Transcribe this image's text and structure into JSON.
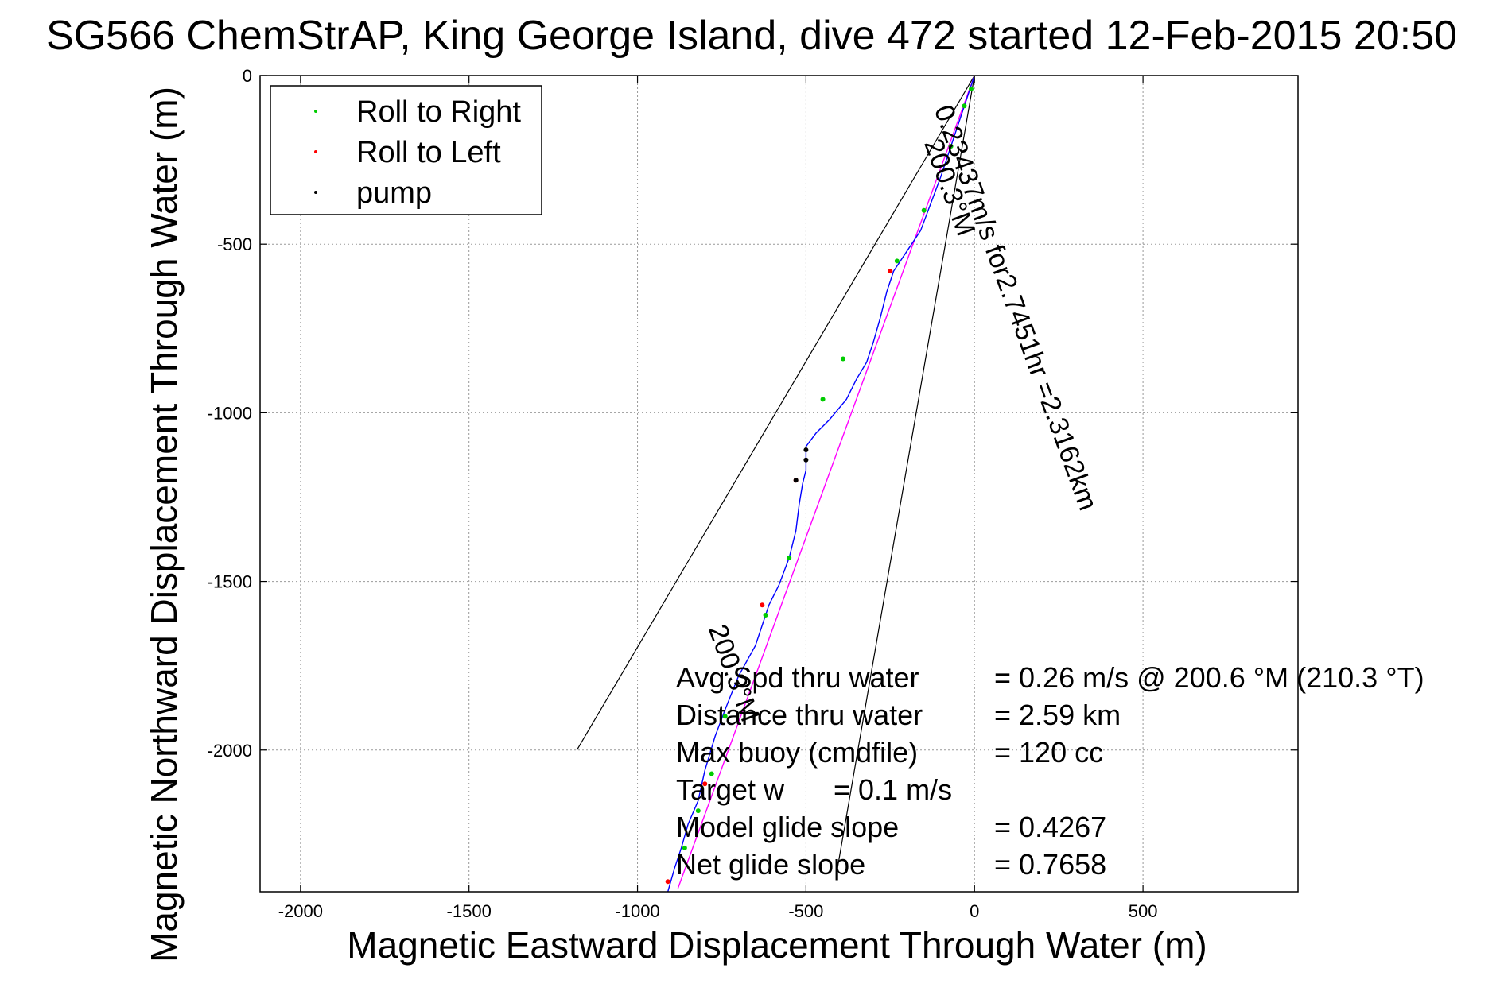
{
  "chart_data": {
    "type": "scatter",
    "title": "SG566 ChemStrAP, King George Island, dive 472 started 12-Feb-2015 20:50",
    "xlabel": "Magnetic Eastward Displacement Through Water (m)",
    "ylabel": "Magnetic Northward Displacement Through Water (m)",
    "xlim": [
      -2120,
      960
    ],
    "ylim": [
      -2420,
      0
    ],
    "xticks": [
      -2000,
      -1500,
      -1000,
      -500,
      0,
      500
    ],
    "xticklabels": [
      "-2000",
      "-1500",
      "-1000",
      "-500",
      "0",
      "500"
    ],
    "yticks": [
      0,
      -500,
      -1000,
      -1500,
      -2000
    ],
    "yticklabels": [
      "0",
      "-500",
      "-1000",
      "-1500",
      "-2000"
    ],
    "grid": true,
    "legend_position": "top-left",
    "legend": [
      {
        "label": "Roll to Right",
        "color": "#00cc00"
      },
      {
        "label": "Roll to Left",
        "color": "#ff0000"
      },
      {
        "label": "pump",
        "color": "#000000"
      }
    ],
    "track": {
      "color": "#0000ff",
      "x": [
        0,
        -20,
        -40,
        -60,
        -80,
        -100,
        -130,
        -160,
        -200,
        -240,
        -260,
        -280,
        -300,
        -320,
        -350,
        -380,
        -430,
        -470,
        -500,
        -500,
        -510,
        -520,
        -530,
        -550,
        -580,
        -610,
        -630,
        -650,
        -700,
        -740,
        -770,
        -800,
        -820,
        -850,
        -870,
        -890,
        -910
      ],
      "y": [
        0,
        -60,
        -120,
        -180,
        -240,
        -300,
        -380,
        -460,
        -520,
        -580,
        -640,
        -720,
        -790,
        -850,
        -900,
        -960,
        -1020,
        -1060,
        -1100,
        -1170,
        -1210,
        -1270,
        -1350,
        -1430,
        -1510,
        -1570,
        -1630,
        -1690,
        -1780,
        -1880,
        -1960,
        -2060,
        -2150,
        -2220,
        -2290,
        -2350,
        -2420
      ]
    },
    "roll_right_points": {
      "x": [
        -10,
        -30,
        -70,
        -150,
        -230,
        -390,
        -450,
        -550,
        -620,
        -740,
        -780,
        -820,
        -860
      ],
      "y": [
        -40,
        -90,
        -210,
        -400,
        -550,
        -840,
        -960,
        -1430,
        -1600,
        -1900,
        -2070,
        -2180,
        -2290
      ],
      "color": "#00cc00"
    },
    "roll_left_points": {
      "x": [
        -250,
        -530,
        -630,
        -800,
        -910
      ],
      "y": [
        -580,
        -1200,
        -1570,
        -2100,
        -2390
      ],
      "color": "#ff0000"
    },
    "pump_points": {
      "x": [
        -500,
        -500,
        -530
      ],
      "y": [
        -1110,
        -1140,
        -1200
      ],
      "color": "#000000"
    },
    "heading_line": {
      "x": [
        0,
        -880
      ],
      "y": [
        0,
        -2410
      ],
      "color": "#ff00ff"
    },
    "cone_lines": [
      {
        "x": [
          0,
          -1180
        ],
        "y": [
          0,
          -2000
        ],
        "color": "#000000"
      },
      {
        "x": [
          0,
          -410
        ],
        "y": [
          0,
          -2370
        ],
        "color": "#000000"
      }
    ],
    "annotations": [
      {
        "text": "0.23437m/s for2.7451hr =2.3162km",
        "x": -120,
        "y": -100,
        "rotate": 70
      },
      {
        "text": "200.3°M",
        "x": -150,
        "y": -200,
        "rotate": 70
      },
      {
        "text": "200.3°M",
        "x": -790,
        "y": -1640,
        "rotate": 70
      }
    ],
    "stats_text": [
      {
        "label": "Avg Spd thru water",
        "value": "=  0.26 m/s @ 200.6 °M (210.3 °T)"
      },
      {
        "label": "Distance thru water",
        "value": "=  2.59 km"
      },
      {
        "label": "Max buoy (cmdfile)",
        "value": "= 120 cc"
      },
      {
        "label": "Target w",
        "value": "= 0.1 m/s"
      },
      {
        "label": "Model glide slope",
        "value": "= 0.4267"
      },
      {
        "label": "Net glide slope",
        "value": "= 0.7658"
      }
    ]
  }
}
